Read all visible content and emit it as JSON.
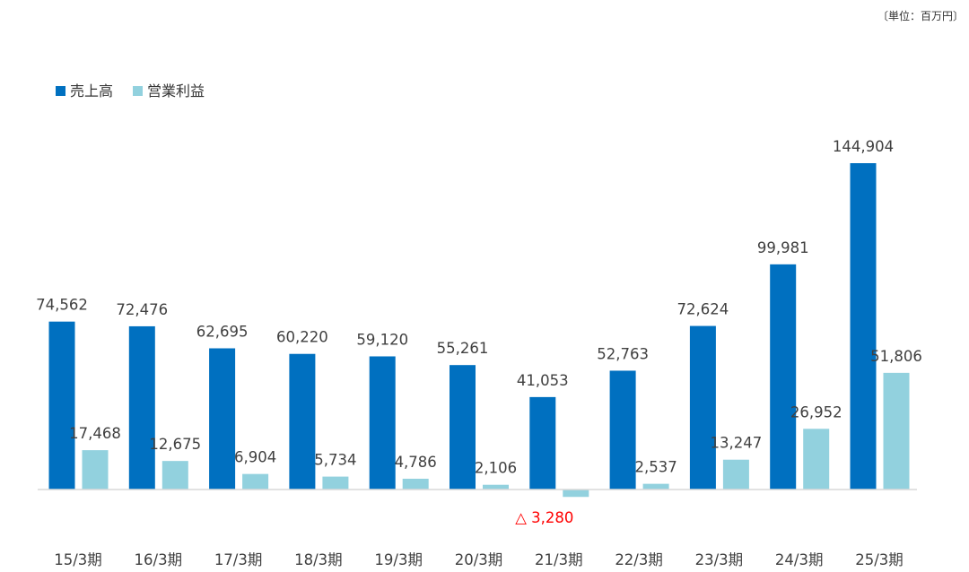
{
  "unit_note": "〔単位：百万円〕",
  "colors": {
    "sales": "#0070c0",
    "profit": "#92d1de",
    "negative_label": "#ff0000",
    "axis": "#d9d9d9"
  },
  "chart_data": {
    "type": "bar",
    "categories": [
      "15/3期",
      "16/3期",
      "17/3期",
      "18/3期",
      "19/3期",
      "20/3期",
      "21/3期",
      "22/3期",
      "23/3期",
      "24/3期",
      "25/3期"
    ],
    "series": [
      {
        "name": "売上高",
        "values": [
          74562,
          72476,
          62695,
          60220,
          59120,
          55261,
          41053,
          52763,
          72624,
          99981,
          144904
        ],
        "labels": [
          "74,562",
          "72,476",
          "62,695",
          "60,220",
          "59,120",
          "55,261",
          "41,053",
          "52,763",
          "72,624",
          "99,981",
          "144,904"
        ]
      },
      {
        "name": "営業利益",
        "values": [
          17468,
          12675,
          6904,
          5734,
          4786,
          2106,
          -3280,
          2537,
          13247,
          26952,
          51806
        ],
        "labels": [
          "17,468",
          "12,675",
          "6,904",
          "5,734",
          "4,786",
          "2,106",
          "△ 3,280",
          "2,537",
          "13,247",
          "26,952",
          "51,806"
        ]
      }
    ],
    "legend_position": "top-left",
    "grid": false
  }
}
